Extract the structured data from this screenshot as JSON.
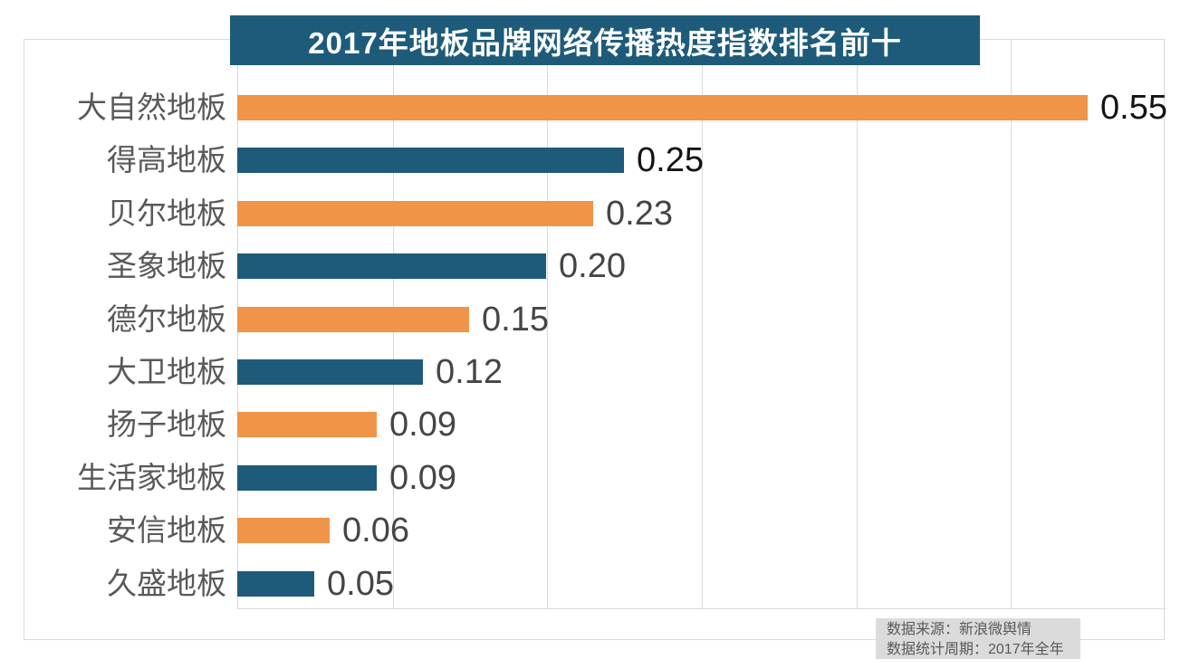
{
  "title": "2017年地板品牌网络传播热度指数排名前十",
  "source_note": {
    "line1": "数据来源：新浪微舆情",
    "line2": "数据统计周期：2017年全年"
  },
  "colors": {
    "orange": "#F0944A",
    "teal": "#1E5B7A",
    "banner_bg": "#1E5B7A",
    "grid": "#D9D9D9",
    "category_label": "#595959",
    "value_label_dark": "#141414",
    "value_label_gray": "#454545",
    "note_bg": "#DBDBDB",
    "note_text": "#595959"
  },
  "chart_data": {
    "type": "bar",
    "orientation": "horizontal",
    "title": "2017年地板品牌网络传播热度指数排名前十",
    "categories": [
      "大自然地板",
      "得高地板",
      "贝尔地板",
      "圣象地板",
      "德尔地板",
      "大卫地板",
      "扬子地板",
      "生活家地板",
      "安信地板",
      "久盛地板"
    ],
    "values": [
      0.55,
      0.25,
      0.23,
      0.2,
      0.15,
      0.12,
      0.09,
      0.09,
      0.06,
      0.05
    ],
    "value_labels": [
      "0.55",
      "0.25",
      "0.23",
      "0.20",
      "0.15",
      "0.12",
      "0.09",
      "0.09",
      "0.06",
      "0.05"
    ],
    "xlabel": "",
    "ylabel": "",
    "xlim": [
      0,
      0.6
    ],
    "gridline_interval": 0.1,
    "grid": "vertical-only",
    "legend": "none",
    "bar_color_pattern": [
      "#F0944A",
      "#1E5B7A"
    ],
    "dark_value_label_rows": [
      0,
      1
    ]
  }
}
